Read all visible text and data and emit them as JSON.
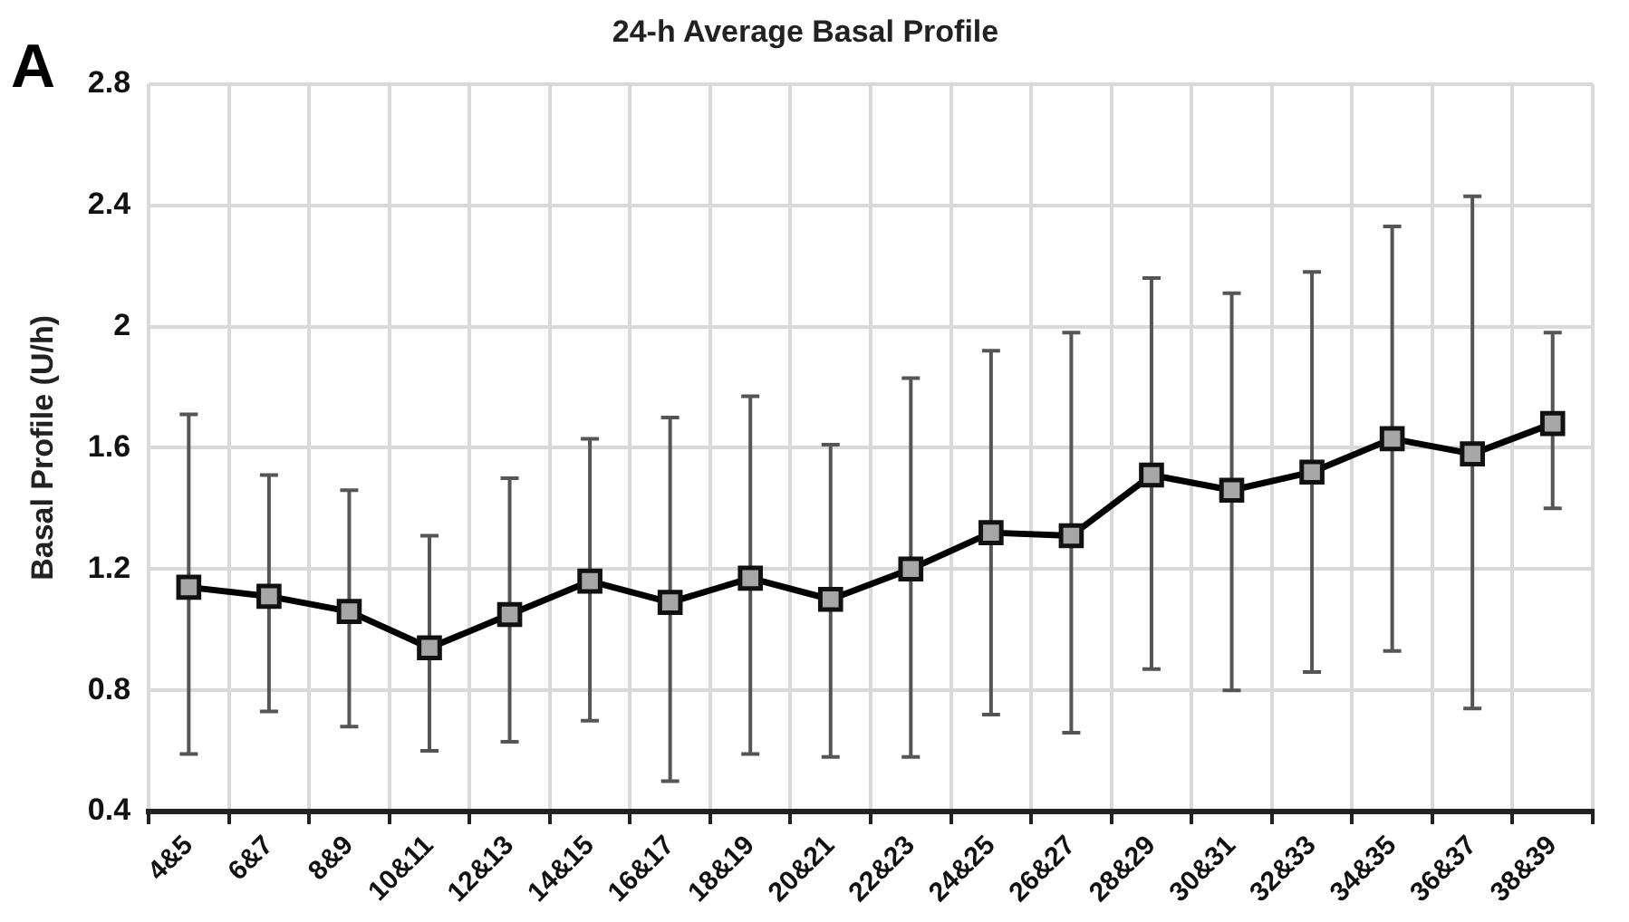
{
  "chart_data": {
    "type": "line",
    "title": "24-h Average Basal Profile",
    "ylabel": "Basal Profile (U/h)",
    "annotations": [
      "A"
    ],
    "categories": [
      "4&5",
      "6&7",
      "8&9",
      "10&11",
      "12&13",
      "14&15",
      "16&17",
      "18&19",
      "20&21",
      "22&23",
      "24&25",
      "26&27",
      "28&29",
      "30&31",
      "32&33",
      "34&35",
      "36&37",
      "38&39"
    ],
    "series": [
      {
        "color": "#000000",
        "values": [
          1.14,
          1.11,
          1.06,
          0.94,
          1.05,
          1.16,
          1.09,
          1.17,
          1.1,
          1.2,
          1.32,
          1.31,
          1.51,
          1.46,
          1.52,
          1.63,
          1.58,
          1.68
        ],
        "errors": [
          [
            0.59,
            1.71
          ],
          [
            0.73,
            1.51
          ],
          [
            0.68,
            1.46
          ],
          [
            0.6,
            1.31
          ],
          [
            0.63,
            1.5
          ],
          [
            0.7,
            1.63
          ],
          [
            0.5,
            1.7
          ],
          [
            0.59,
            1.77
          ],
          [
            0.58,
            1.61
          ],
          [
            0.58,
            1.83
          ],
          [
            0.72,
            1.92
          ],
          [
            0.66,
            1.98
          ],
          [
            0.87,
            2.16
          ],
          [
            0.8,
            2.11
          ],
          [
            0.86,
            2.18
          ],
          [
            0.93,
            2.33
          ],
          [
            0.74,
            2.43
          ],
          [
            1.4,
            1.98
          ]
        ]
      }
    ],
    "ylim": [
      0.4,
      2.8
    ],
    "yticks": [
      0.4,
      0.8,
      1.2,
      1.6,
      2,
      2.4,
      2.8
    ],
    "grid": true,
    "legend": false,
    "marker": "square",
    "line_style": "solid"
  }
}
